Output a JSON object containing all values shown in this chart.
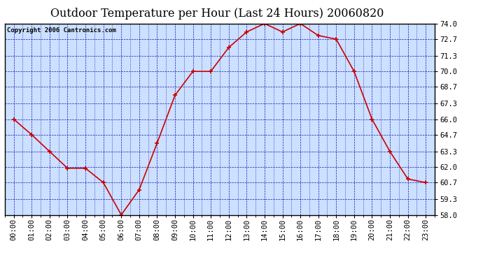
{
  "title": "Outdoor Temperature per Hour (Last 24 Hours) 20060820",
  "copyright": "Copyright 2006 Cantronics.com",
  "hours": [
    "00:00",
    "01:00",
    "02:00",
    "03:00",
    "04:00",
    "05:00",
    "06:00",
    "07:00",
    "08:00",
    "09:00",
    "10:00",
    "11:00",
    "12:00",
    "13:00",
    "14:00",
    "15:00",
    "16:00",
    "17:00",
    "18:00",
    "19:00",
    "20:00",
    "21:00",
    "22:00",
    "23:00"
  ],
  "temps": [
    66.0,
    64.7,
    63.3,
    61.9,
    61.9,
    60.7,
    58.0,
    60.1,
    64.0,
    68.0,
    70.0,
    70.0,
    72.0,
    73.3,
    74.0,
    73.3,
    74.0,
    73.0,
    72.7,
    70.0,
    66.0,
    63.3,
    61.0,
    60.7
  ],
  "y_min": 58.0,
  "y_max": 74.0,
  "y_ticks": [
    58.0,
    59.3,
    60.7,
    62.0,
    63.3,
    64.7,
    66.0,
    67.3,
    68.7,
    70.0,
    71.3,
    72.7,
    74.0
  ],
  "line_color": "#cc0000",
  "marker_color": "#cc0000",
  "bg_color": "#cce0ff",
  "grid_color": "#0000bb",
  "border_color": "#000000",
  "title_color": "#000000",
  "copyright_color": "#000000",
  "title_fontsize": 11.5,
  "copyright_fontsize": 6.5,
  "tick_fontsize": 7.5,
  "fig_width": 6.9,
  "fig_height": 3.75
}
